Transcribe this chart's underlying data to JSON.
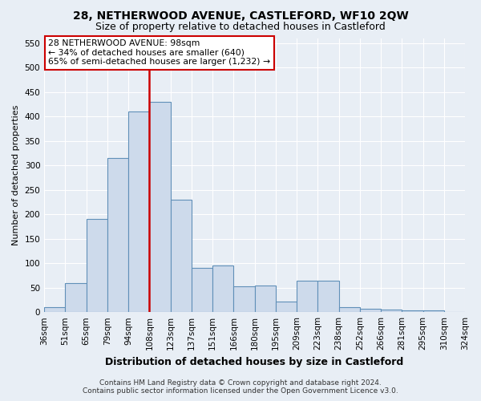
{
  "title": "28, NETHERWOOD AVENUE, CASTLEFORD, WF10 2QW",
  "subtitle": "Size of property relative to detached houses in Castleford",
  "xlabel": "Distribution of detached houses by size in Castleford",
  "ylabel": "Number of detached properties",
  "bar_values": [
    10,
    60,
    190,
    315,
    410,
    430,
    230,
    90,
    95,
    52,
    55,
    22,
    65,
    65,
    10,
    7,
    5,
    3,
    3,
    1
  ],
  "categories": [
    "36sqm",
    "51sqm",
    "65sqm",
    "79sqm",
    "94sqm",
    "108sqm",
    "123sqm",
    "137sqm",
    "151sqm",
    "166sqm",
    "180sqm",
    "195sqm",
    "209sqm",
    "223sqm",
    "238sqm",
    "252sqm",
    "266sqm",
    "281sqm",
    "295sqm",
    "310sqm",
    "324sqm"
  ],
  "bar_color": "#cddaeb",
  "bar_edge_color": "#6090b8",
  "vline_color": "#cc0000",
  "vline_x": 4.5,
  "annotation_title": "28 NETHERWOOD AVENUE: 98sqm",
  "annotation_line1": "← 34% of detached houses are smaller (640)",
  "annotation_line2": "65% of semi-detached houses are larger (1,232) →",
  "annotation_box_edgecolor": "#cc0000",
  "annotation_box_facecolor": "#ffffff",
  "ylim": [
    0,
    560
  ],
  "yticks": [
    0,
    50,
    100,
    150,
    200,
    250,
    300,
    350,
    400,
    450,
    500,
    550
  ],
  "footer_line1": "Contains HM Land Registry data © Crown copyright and database right 2024.",
  "footer_line2": "Contains public sector information licensed under the Open Government Licence v3.0.",
  "background_color": "#e8eef5",
  "plot_bg_color": "#e8eef5",
  "title_fontsize": 10,
  "subtitle_fontsize": 9,
  "xlabel_fontsize": 9,
  "ylabel_fontsize": 8,
  "tick_fontsize": 7.5,
  "footer_fontsize": 6.5
}
